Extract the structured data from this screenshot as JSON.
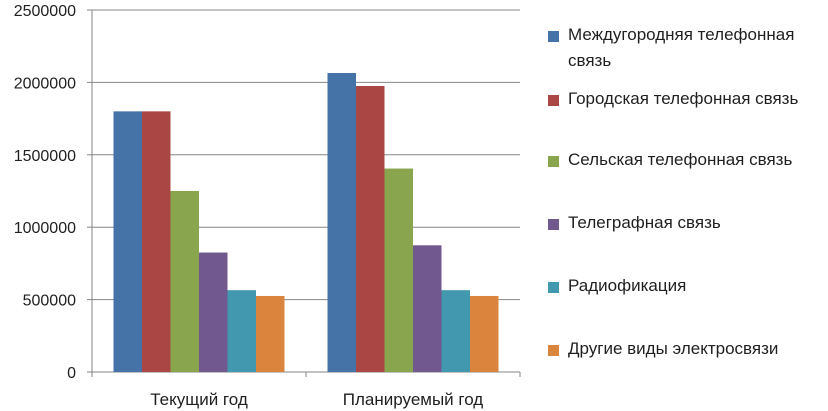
{
  "chart_data": {
    "type": "bar",
    "categories": [
      "Текущий год",
      "Планируемый год"
    ],
    "series": [
      {
        "name": "Междугородняя телефонная связь",
        "color": "#4572a7",
        "values": [
          1800000,
          2065000
        ]
      },
      {
        "name": "Городская телефонная связь",
        "color": "#aa4643",
        "values": [
          1800000,
          1975000
        ]
      },
      {
        "name": "Сельская телефонная связь",
        "color": "#89a54e",
        "values": [
          1250000,
          1405000
        ]
      },
      {
        "name": "Телеграфная связь",
        "color": "#71588f",
        "values": [
          825000,
          875000
        ]
      },
      {
        "name": "Радиофикация",
        "color": "#4198af",
        "values": [
          565000,
          565000
        ]
      },
      {
        "name": "Другие виды электросвязи",
        "color": "#db843d",
        "values": [
          525000,
          525000
        ]
      }
    ],
    "y_ticks": [
      "0",
      "500000",
      "1000000",
      "1500000",
      "2000000",
      "2500000"
    ],
    "ylim": [
      0,
      2500000
    ],
    "grid": true,
    "legend_position": "right"
  }
}
